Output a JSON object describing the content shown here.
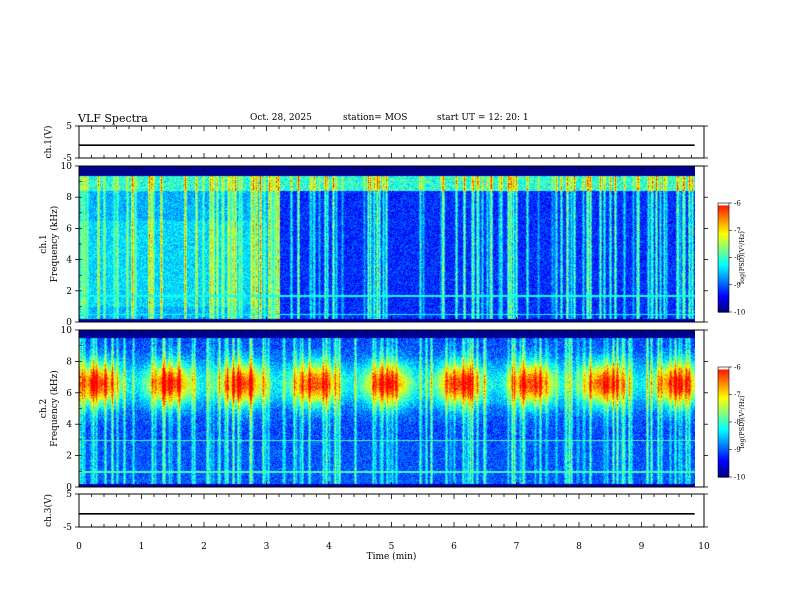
{
  "header": {
    "title": "VLF Spectra",
    "date": "Oct. 28, 2025",
    "station": "station= MOS",
    "start_ut": "start  UT =   12: 20: 1"
  },
  "colors": {
    "axes": "#000000",
    "colormap": [
      "#000080",
      "#0000ff",
      "#0080ff",
      "#00ffff",
      "#80ff80",
      "#ffff00",
      "#ff8000",
      "#ff0000",
      "#ffffff"
    ]
  },
  "chart_data": [
    {
      "type": "line",
      "panel": "ch1-voltage",
      "ylabel": "ch.1(V)",
      "ylim": [
        -5,
        5
      ],
      "yticks": [
        "5",
        "-5"
      ],
      "xlim": [
        0,
        10
      ],
      "series": [
        {
          "x": [
            0,
            9.85
          ],
          "y": [
            -1,
            -1
          ]
        }
      ]
    },
    {
      "type": "heatmap",
      "panel": "ch1-spectrogram",
      "ylabel": "ch.1\nFrequency (kHz)",
      "ylim": [
        0,
        10
      ],
      "yticks": [
        "0",
        "2",
        "4",
        "6",
        "8",
        "10"
      ],
      "xlim": [
        0,
        10
      ],
      "data_x_end": 9.85,
      "colorbar": {
        "label": "log(PSD)(V²/Hz)",
        "range": [
          -10,
          -6
        ],
        "ticks": [
          "-6",
          "-7",
          "-8",
          "-9",
          "-10"
        ]
      }
    },
    {
      "type": "heatmap",
      "panel": "ch2-spectrogram",
      "ylabel": "ch.2\nFrequency (kHz)",
      "ylim": [
        0,
        10
      ],
      "yticks": [
        "0",
        "2",
        "4",
        "6",
        "8",
        "10"
      ],
      "xlim": [
        0,
        10
      ],
      "data_x_end": 9.85,
      "colorbar": {
        "label": "log(PSD)(V²/Hz)",
        "range": [
          -10,
          -6
        ],
        "ticks": [
          "-6",
          "-7",
          "-8",
          "-9",
          "-10"
        ]
      }
    },
    {
      "type": "line",
      "panel": "ch3-voltage",
      "ylabel": "ch.3(V)",
      "ylim": [
        -5,
        5
      ],
      "yticks": [
        "5",
        "-5"
      ],
      "xlim": [
        0,
        10
      ],
      "series": [
        {
          "x": [
            0,
            9.85
          ],
          "y": [
            -1,
            -1
          ]
        }
      ]
    }
  ],
  "xaxis": {
    "label": "Time  (min)",
    "ticks": [
      "0",
      "1",
      "2",
      "3",
      "4",
      "5",
      "6",
      "7",
      "8",
      "9",
      "10"
    ]
  }
}
